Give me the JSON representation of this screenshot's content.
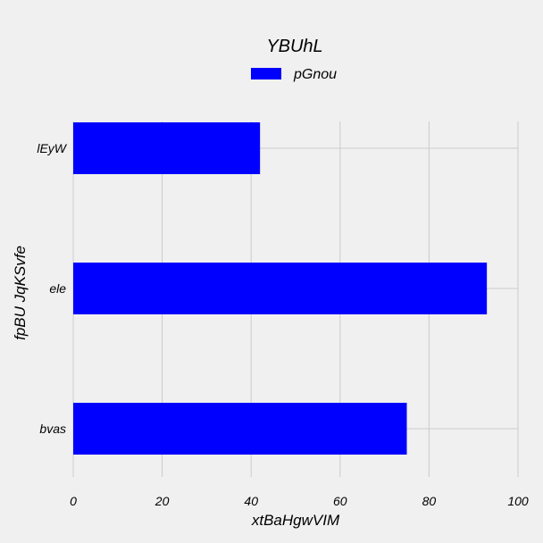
{
  "chart_data": {
    "type": "bar",
    "orientation": "horizontal",
    "title": "YBUhL",
    "xlabel": "xtBaHgwVIM",
    "ylabel": "fpBU JqKSvfe",
    "categories": [
      "lEyW",
      "ele",
      "bvas"
    ],
    "series": [
      {
        "name": "pGnou",
        "values": [
          42,
          93,
          75
        ],
        "color": "#0000ff"
      }
    ],
    "xlim": [
      0,
      100
    ],
    "xticks": [
      0,
      20,
      40,
      60,
      80,
      100
    ],
    "grid": true,
    "legend_position": "top-center",
    "background": "#f0f0f0"
  }
}
